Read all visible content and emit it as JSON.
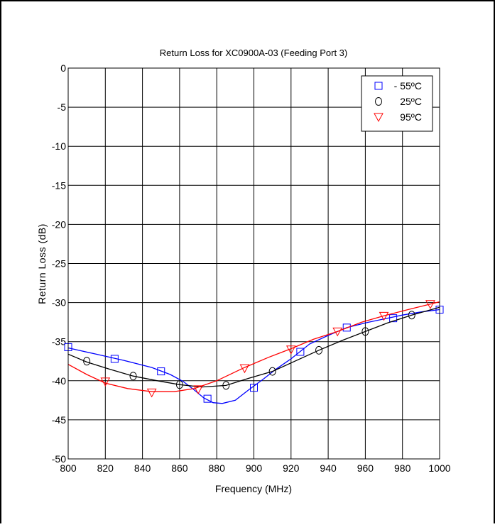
{
  "chart_data": {
    "type": "line",
    "title": "Return Loss for XC0900A-03 (Feeding Port 3)",
    "xlabel": "Frequency (MHz)",
    "ylabel": "Return Loss (dB)",
    "xlim": [
      800,
      1000
    ],
    "ylim": [
      -50,
      0
    ],
    "xticks": [
      800,
      820,
      840,
      860,
      880,
      900,
      920,
      940,
      960,
      980,
      1000
    ],
    "yticks": [
      0,
      -5,
      -10,
      -15,
      -20,
      -25,
      -30,
      -35,
      -40,
      -45,
      -50
    ],
    "grid": true,
    "legend_position": "top-right",
    "series": [
      {
        "name": "- 55ºC",
        "color": "#0000ff",
        "marker": "square",
        "curve": [
          [
            800,
            -35.8
          ],
          [
            815,
            -36.6
          ],
          [
            830,
            -37.4
          ],
          [
            845,
            -38.3
          ],
          [
            855,
            -39.2
          ],
          [
            862,
            -40.1
          ],
          [
            868,
            -41.2
          ],
          [
            873,
            -42.2
          ],
          [
            878,
            -42.8
          ],
          [
            883,
            -42.9
          ],
          [
            890,
            -42.5
          ],
          [
            897,
            -41.2
          ],
          [
            905,
            -39.8
          ],
          [
            912,
            -38.5
          ],
          [
            920,
            -37.2
          ],
          [
            930,
            -35.3
          ],
          [
            940,
            -34.2
          ],
          [
            950,
            -33.2
          ],
          [
            960,
            -32.6
          ],
          [
            970,
            -32.1
          ],
          [
            980,
            -31.6
          ],
          [
            990,
            -31.2
          ],
          [
            1000,
            -30.9
          ]
        ],
        "markers": [
          [
            800,
            -35.7
          ],
          [
            825,
            -37.2
          ],
          [
            850,
            -38.8
          ],
          [
            875,
            -42.3
          ],
          [
            900,
            -40.9
          ],
          [
            925,
            -36.3
          ],
          [
            950,
            -33.2
          ],
          [
            975,
            -32.0
          ],
          [
            1000,
            -30.9
          ]
        ]
      },
      {
        "name": "25ºC",
        "color": "#000000",
        "marker": "circle",
        "curve": [
          [
            800,
            -36.6
          ],
          [
            810,
            -37.6
          ],
          [
            822,
            -38.5
          ],
          [
            835,
            -39.4
          ],
          [
            848,
            -40.0
          ],
          [
            860,
            -40.5
          ],
          [
            872,
            -40.8
          ],
          [
            885,
            -40.6
          ],
          [
            897,
            -39.7
          ],
          [
            910,
            -38.8
          ],
          [
            922,
            -37.5
          ],
          [
            935,
            -36.1
          ],
          [
            948,
            -34.8
          ],
          [
            960,
            -33.7
          ],
          [
            972,
            -32.6
          ],
          [
            985,
            -31.6
          ],
          [
            1000,
            -30.6
          ]
        ],
        "markers": [
          [
            810,
            -37.5
          ],
          [
            835,
            -39.4
          ],
          [
            860,
            -40.5
          ],
          [
            885,
            -40.6
          ],
          [
            910,
            -38.8
          ],
          [
            935,
            -36.1
          ],
          [
            960,
            -33.7
          ],
          [
            985,
            -31.6
          ]
        ]
      },
      {
        "name": "95ºC",
        "color": "#ff0000",
        "marker": "triangle-down",
        "curve": [
          [
            800,
            -37.9
          ],
          [
            810,
            -39.2
          ],
          [
            820,
            -40.3
          ],
          [
            832,
            -41.0
          ],
          [
            845,
            -41.4
          ],
          [
            857,
            -41.4
          ],
          [
            868,
            -41.0
          ],
          [
            880,
            -40.0
          ],
          [
            895,
            -38.3
          ],
          [
            908,
            -37.0
          ],
          [
            920,
            -35.9
          ],
          [
            932,
            -34.7
          ],
          [
            945,
            -33.7
          ],
          [
            958,
            -32.5
          ],
          [
            970,
            -31.7
          ],
          [
            983,
            -30.9
          ],
          [
            995,
            -30.2
          ],
          [
            1000,
            -29.9
          ]
        ],
        "markers": [
          [
            820,
            -40.1
          ],
          [
            845,
            -41.5
          ],
          [
            870,
            -41.1
          ],
          [
            895,
            -38.4
          ],
          [
            920,
            -36.0
          ],
          [
            945,
            -33.7
          ],
          [
            970,
            -31.7
          ],
          [
            995,
            -30.2
          ]
        ]
      }
    ]
  }
}
